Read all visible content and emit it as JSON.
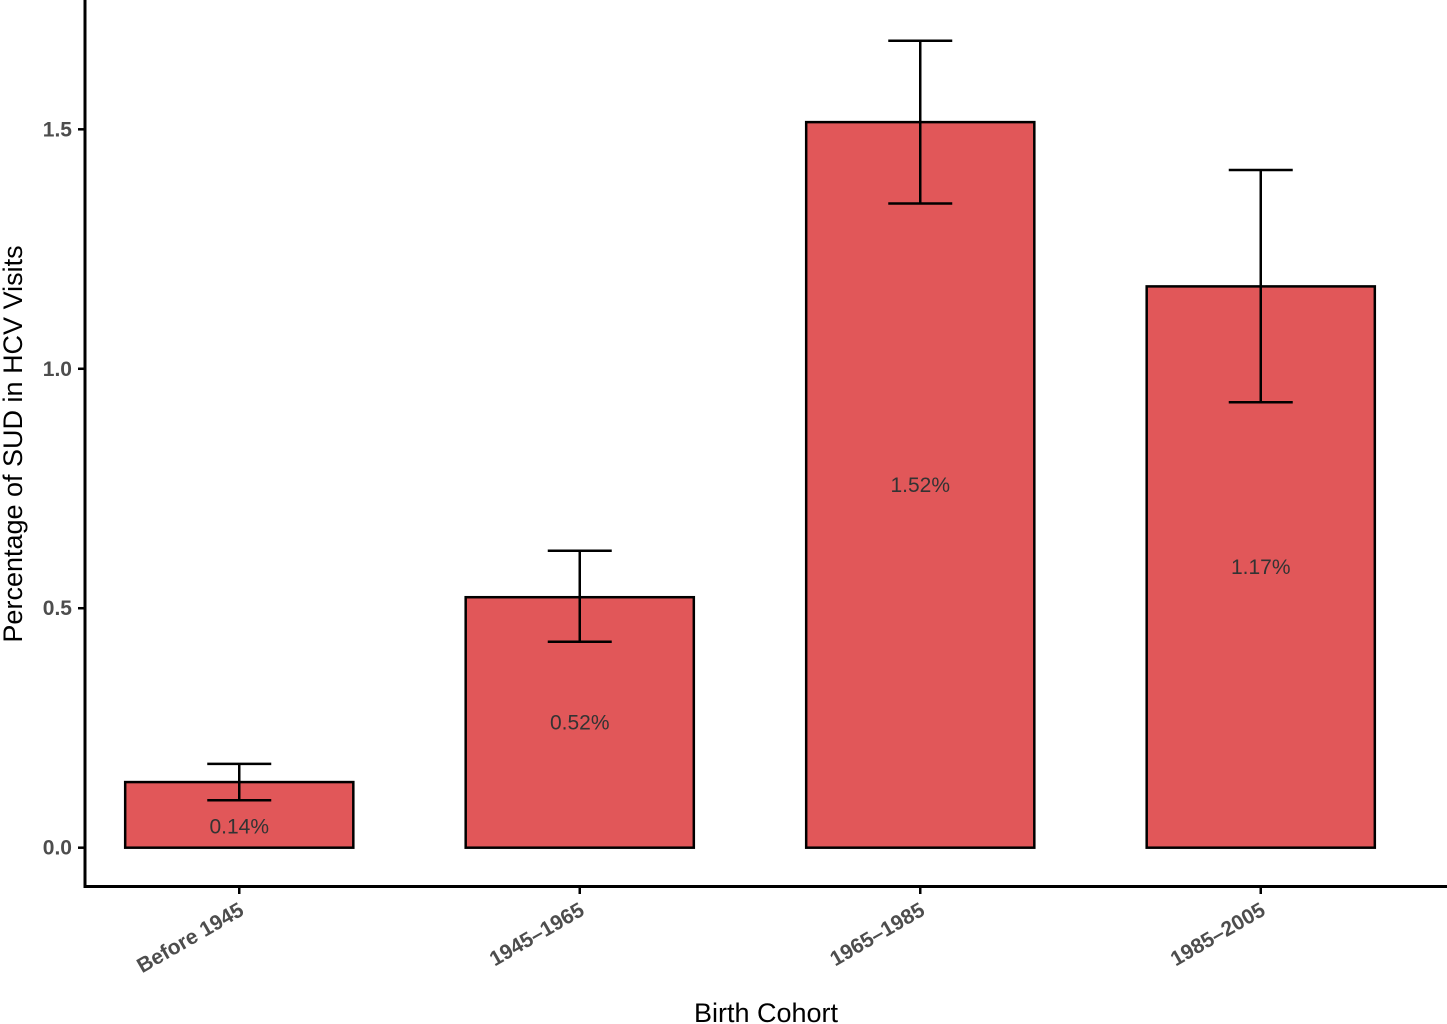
{
  "chart_data": {
    "type": "bar",
    "categories": [
      "Before 1945",
      "1945–1965",
      "1965–1985",
      "1985–2005"
    ],
    "values": [
      0.137,
      0.523,
      1.515,
      1.172
    ],
    "error_low": [
      0.099,
      0.43,
      1.345,
      0.93
    ],
    "error_high": [
      0.175,
      0.62,
      1.685,
      1.415
    ],
    "data_labels": [
      "0.14%",
      "0.52%",
      "1.52%",
      "1.17%"
    ],
    "xlabel": "Birth Cohort",
    "ylabel": "Percentage of SUD in HCV Visits",
    "yticks": [
      0.0,
      0.5,
      1.0,
      1.5
    ],
    "ytick_labels": [
      "0.0",
      "0.5",
      "1.0",
      "1.5"
    ],
    "ylim": [
      -0.08,
      1.77
    ],
    "grid": false,
    "bar_color": "#e15759",
    "bar_edge_color": "#000000"
  }
}
